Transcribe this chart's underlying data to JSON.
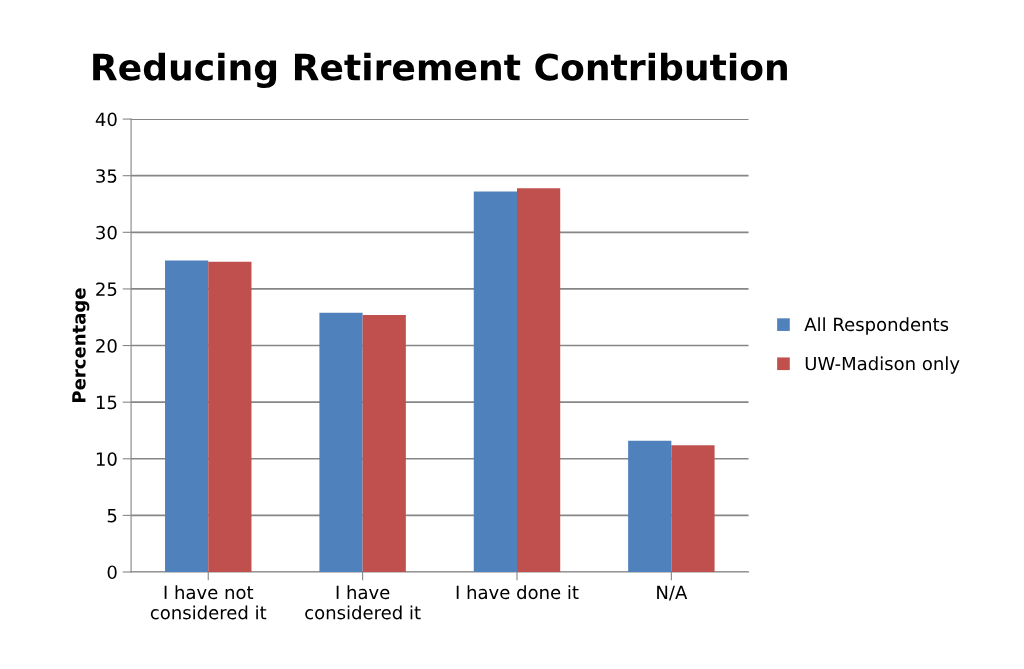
{
  "chart_data": {
    "type": "bar",
    "title": "Reducing Retirement Contribution",
    "ylabel": "Percentage",
    "categories": [
      "I have not\nconsidered it",
      "I have\nconsidered it",
      "I have done it",
      "N/A"
    ],
    "series": [
      {
        "name": "All Respondents",
        "color": "#4f81bd",
        "values": [
          27.5,
          22.9,
          33.6,
          11.6
        ]
      },
      {
        "name": "UW-Madison only",
        "color": "#c0504d",
        "values": [
          27.4,
          22.7,
          33.9,
          11.2
        ]
      }
    ],
    "ylim": [
      0,
      40
    ],
    "yticks": [
      0,
      5,
      10,
      15,
      20,
      25,
      30,
      35,
      40
    ],
    "grid": "y",
    "legend": "right"
  }
}
